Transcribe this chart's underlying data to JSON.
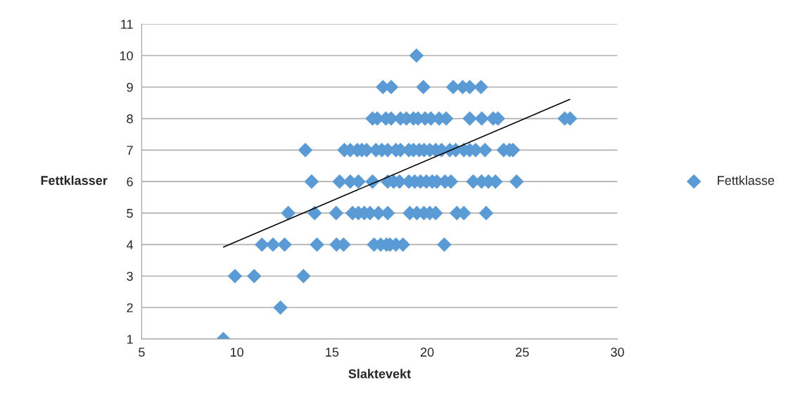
{
  "chart_data": {
    "type": "scatter",
    "xlabel": "Slaktevekt",
    "ylabel": "Fettklasser",
    "xlim": [
      5,
      30
    ],
    "xticks": [
      5,
      10,
      15,
      20,
      25,
      30
    ],
    "ylim": [
      1,
      11
    ],
    "yticks": [
      1,
      2,
      3,
      4,
      5,
      6,
      7,
      8,
      9,
      10,
      11
    ],
    "grid": "y",
    "legend": "right",
    "series": [
      {
        "name": "Fettklasse",
        "marker": "diamond",
        "color": "#5b9bd5",
        "x": [
          19.44,
          17.68,
          18.11,
          19.8,
          21.37,
          21.87,
          22.24,
          22.83,
          17.13,
          17.38,
          17.83,
          18.11,
          18.6,
          18.91,
          19.28,
          19.52,
          19.89,
          20.2,
          20.63,
          21.0,
          22.24,
          22.87,
          23.47,
          23.72,
          27.23,
          27.51,
          13.6,
          15.65,
          15.96,
          16.33,
          16.57,
          16.82,
          17.31,
          17.62,
          17.93,
          18.36,
          18.6,
          19.04,
          19.28,
          19.59,
          19.84,
          20.14,
          20.45,
          20.76,
          21.19,
          21.5,
          21.93,
          22.24,
          22.55,
          23.04,
          24.02,
          24.33,
          24.51,
          13.93,
          15.4,
          15.96,
          16.39,
          17.13,
          17.93,
          18.24,
          18.55,
          19.04,
          19.35,
          19.65,
          19.96,
          20.27,
          20.51,
          20.94,
          21.25,
          22.42,
          22.86,
          23.22,
          23.59,
          24.7,
          12.7,
          14.09,
          15.22,
          16.08,
          16.39,
          16.7,
          17.0,
          17.44,
          17.93,
          19.09,
          19.46,
          19.83,
          20.14,
          20.45,
          21.56,
          21.93,
          23.1,
          11.32,
          11.9,
          12.51,
          14.21,
          15.24,
          15.61,
          17.21,
          17.56,
          17.87,
          18.05,
          18.36,
          18.73,
          20.9,
          9.9,
          10.91,
          13.5,
          12.29,
          9.29
        ],
        "values": [
          10,
          9,
          9,
          9,
          9,
          9,
          9,
          9,
          8,
          8,
          8,
          8,
          8,
          8,
          8,
          8,
          8,
          8,
          8,
          8,
          8,
          8,
          8,
          8,
          8,
          8,
          7,
          7,
          7,
          7,
          7,
          7,
          7,
          7,
          7,
          7,
          7,
          7,
          7,
          7,
          7,
          7,
          7,
          7,
          7,
          7,
          7,
          7,
          7,
          7,
          7,
          7,
          7,
          6,
          6,
          6,
          6,
          6,
          6,
          6,
          6,
          6,
          6,
          6,
          6,
          6,
          6,
          6,
          6,
          6,
          6,
          6,
          6,
          6,
          5,
          5,
          5,
          5,
          5,
          5,
          5,
          5,
          5,
          5,
          5,
          5,
          5,
          5,
          5,
          5,
          5,
          4,
          4,
          4,
          4,
          4,
          4,
          4,
          4,
          4,
          4,
          4,
          4,
          4,
          3,
          3,
          3,
          2,
          1
        ]
      },
      {
        "type": "line",
        "color": "#000000",
        "x": [
          9.3,
          27.5
        ],
        "values": [
          3.92,
          8.61
        ]
      }
    ]
  }
}
